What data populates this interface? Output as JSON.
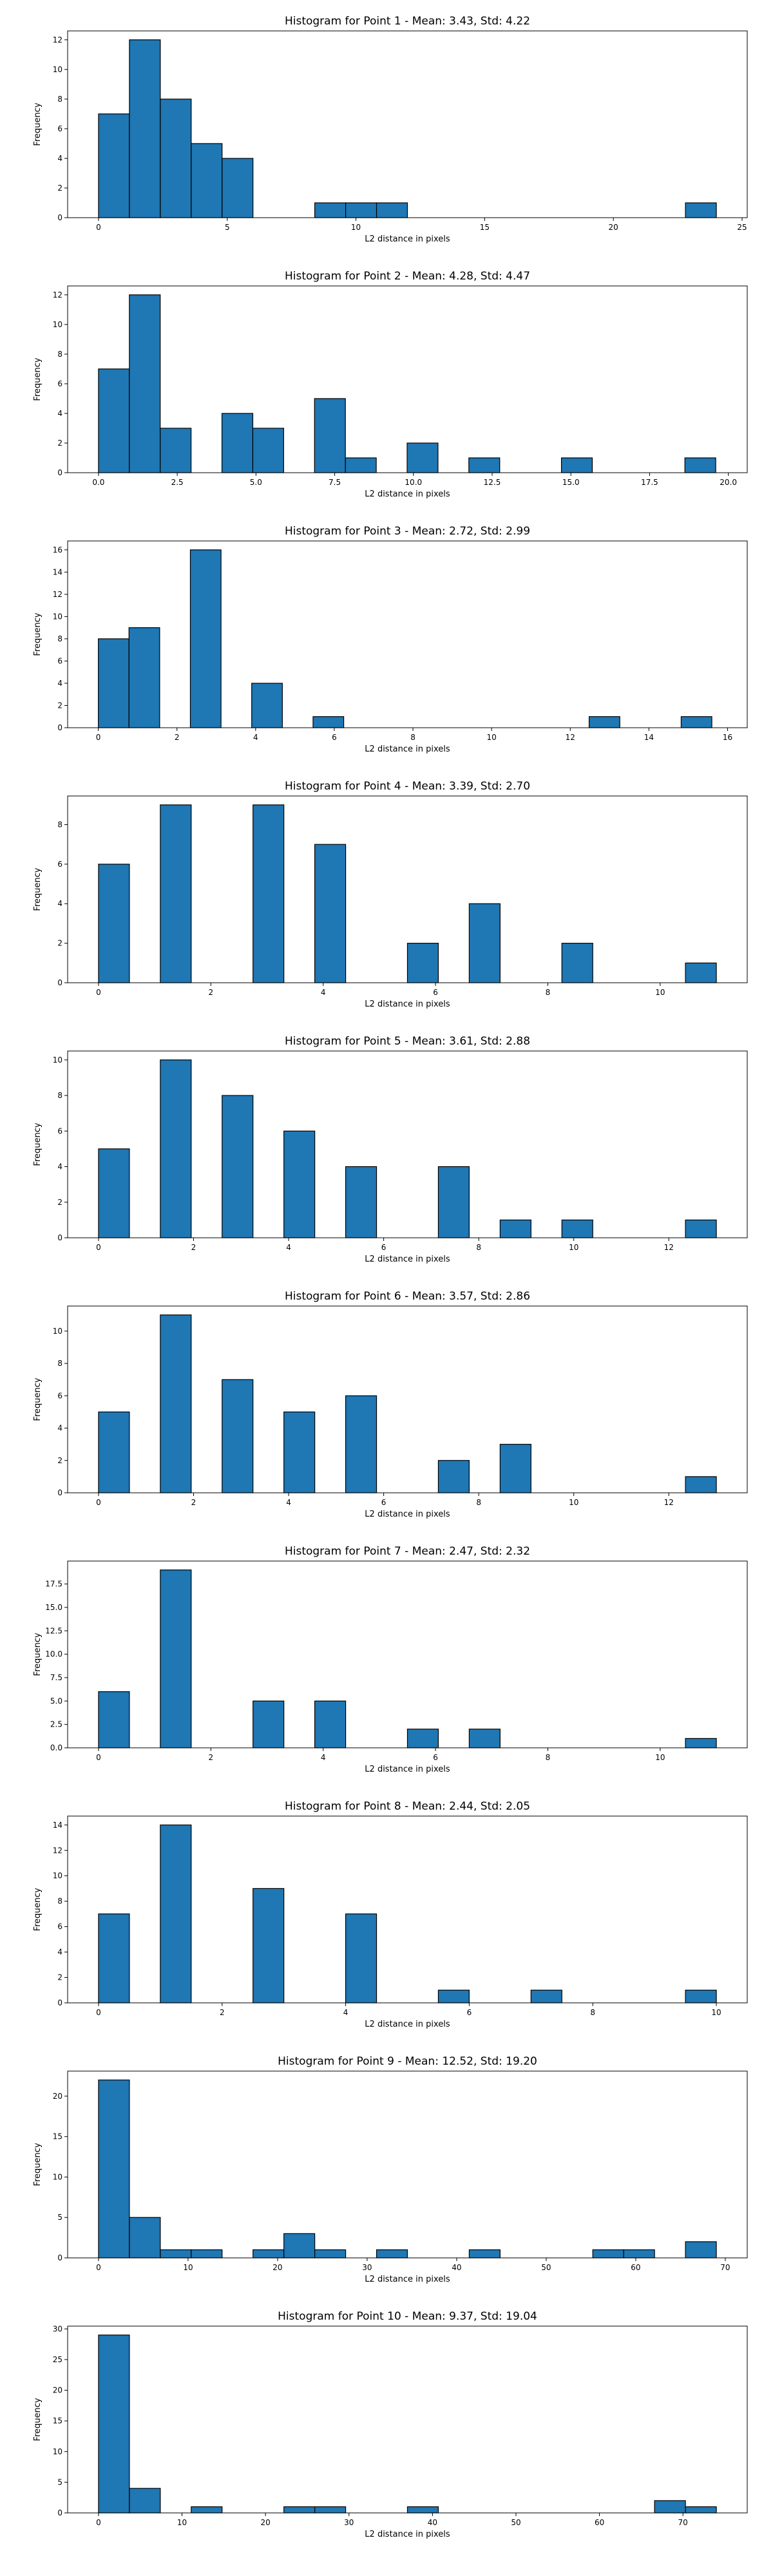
{
  "chart_data": [
    {
      "type": "bar",
      "title": "Histogram for Point 1 - Mean: 3.43, Std: 4.22",
      "xlabel": "L2 distance in pixels",
      "ylabel": "Frequency",
      "xlim": [
        -1.2,
        25.2
      ],
      "ylim": [
        0,
        12.6
      ],
      "xticks": [
        0,
        5,
        10,
        15,
        20,
        25
      ],
      "yticks": [
        0,
        2,
        4,
        6,
        8,
        10,
        12
      ],
      "grid": false,
      "bins": [
        {
          "x0": 0.0,
          "x1": 1.2,
          "count": 7
        },
        {
          "x0": 1.2,
          "x1": 2.4,
          "count": 12
        },
        {
          "x0": 2.4,
          "x1": 3.6,
          "count": 8
        },
        {
          "x0": 3.6,
          "x1": 4.8,
          "count": 5
        },
        {
          "x0": 4.8,
          "x1": 6.0,
          "count": 4
        },
        {
          "x0": 8.4,
          "x1": 9.6,
          "count": 1
        },
        {
          "x0": 9.6,
          "x1": 10.8,
          "count": 1
        },
        {
          "x0": 10.8,
          "x1": 12.0,
          "count": 1
        },
        {
          "x0": 22.8,
          "x1": 24.0,
          "count": 1
        }
      ]
    },
    {
      "type": "bar",
      "title": "Histogram for Point 2 - Mean: 4.28, Std: 4.47",
      "xlabel": "L2 distance in pixels",
      "ylabel": "Frequency",
      "xlim": [
        -0.98,
        20.6
      ],
      "ylim": [
        0,
        12.6
      ],
      "xticks": [
        "0.0",
        "2.5",
        "5.0",
        "7.5",
        "10.0",
        "12.5",
        "15.0",
        "17.5",
        "20.0"
      ],
      "yticks": [
        0,
        2,
        4,
        6,
        8,
        10,
        12
      ],
      "grid": false,
      "bins": [
        {
          "x0": 0.0,
          "x1": 0.98,
          "count": 7
        },
        {
          "x0": 0.98,
          "x1": 1.96,
          "count": 12
        },
        {
          "x0": 1.96,
          "x1": 2.94,
          "count": 3
        },
        {
          "x0": 3.92,
          "x1": 4.9,
          "count": 4
        },
        {
          "x0": 4.9,
          "x1": 5.88,
          "count": 3
        },
        {
          "x0": 6.86,
          "x1": 7.84,
          "count": 5
        },
        {
          "x0": 7.84,
          "x1": 8.82,
          "count": 1
        },
        {
          "x0": 9.8,
          "x1": 10.78,
          "count": 2
        },
        {
          "x0": 11.76,
          "x1": 12.74,
          "count": 1
        },
        {
          "x0": 14.7,
          "x1": 15.68,
          "count": 1
        },
        {
          "x0": 18.62,
          "x1": 19.6,
          "count": 1
        }
      ]
    },
    {
      "type": "bar",
      "title": "Histogram for Point 3 - Mean: 2.72, Std: 2.99",
      "xlabel": "L2 distance in pixels",
      "ylabel": "Frequency",
      "xlim": [
        -0.78,
        16.5
      ],
      "ylim": [
        0,
        16.8
      ],
      "xticks": [
        0,
        2,
        4,
        6,
        8,
        10,
        12,
        14,
        16
      ],
      "yticks": [
        0,
        2,
        4,
        6,
        8,
        10,
        12,
        14,
        16
      ],
      "grid": false,
      "bins": [
        {
          "x0": 0.0,
          "x1": 0.78,
          "count": 8
        },
        {
          "x0": 0.78,
          "x1": 1.56,
          "count": 9
        },
        {
          "x0": 2.34,
          "x1": 3.12,
          "count": 16
        },
        {
          "x0": 3.9,
          "x1": 4.68,
          "count": 4
        },
        {
          "x0": 5.46,
          "x1": 6.24,
          "count": 1
        },
        {
          "x0": 12.48,
          "x1": 13.26,
          "count": 1
        },
        {
          "x0": 14.82,
          "x1": 15.6,
          "count": 1
        }
      ]
    },
    {
      "type": "bar",
      "title": "Histogram for Point 4 - Mean: 3.39, Std: 2.70",
      "xlabel": "L2 distance in pixels",
      "ylabel": "Frequency",
      "xlim": [
        -0.55,
        11.55
      ],
      "ylim": [
        0,
        9.45
      ],
      "xticks": [
        0,
        2,
        4,
        6,
        8,
        10
      ],
      "yticks": [
        0,
        2,
        4,
        6,
        8
      ],
      "grid": false,
      "bins": [
        {
          "x0": 0.0,
          "x1": 0.55,
          "count": 6
        },
        {
          "x0": 1.1,
          "x1": 1.65,
          "count": 9
        },
        {
          "x0": 2.75,
          "x1": 3.3,
          "count": 9
        },
        {
          "x0": 3.85,
          "x1": 4.4,
          "count": 7
        },
        {
          "x0": 5.5,
          "x1": 6.05,
          "count": 2
        },
        {
          "x0": 6.6,
          "x1": 7.15,
          "count": 4
        },
        {
          "x0": 8.25,
          "x1": 8.8,
          "count": 2
        },
        {
          "x0": 10.45,
          "x1": 11.0,
          "count": 1
        }
      ]
    },
    {
      "type": "bar",
      "title": "Histogram for Point 5 - Mean: 3.61, Std: 2.88",
      "xlabel": "L2 distance in pixels",
      "ylabel": "Frequency",
      "xlim": [
        -0.65,
        13.65
      ],
      "ylim": [
        0,
        10.5
      ],
      "xticks": [
        0,
        2,
        4,
        6,
        8,
        10,
        12
      ],
      "yticks": [
        0,
        2,
        4,
        6,
        8,
        10
      ],
      "grid": false,
      "bins": [
        {
          "x0": 0.0,
          "x1": 0.65,
          "count": 5
        },
        {
          "x0": 1.3,
          "x1": 1.95,
          "count": 10
        },
        {
          "x0": 2.6,
          "x1": 3.25,
          "count": 8
        },
        {
          "x0": 3.9,
          "x1": 4.55,
          "count": 6
        },
        {
          "x0": 5.2,
          "x1": 5.85,
          "count": 4
        },
        {
          "x0": 7.15,
          "x1": 7.8,
          "count": 4
        },
        {
          "x0": 8.45,
          "x1": 9.1,
          "count": 1
        },
        {
          "x0": 9.75,
          "x1": 10.4,
          "count": 1
        },
        {
          "x0": 12.35,
          "x1": 13.0,
          "count": 1
        }
      ]
    },
    {
      "type": "bar",
      "title": "Histogram for Point 6 - Mean: 3.57, Std: 2.86",
      "xlabel": "L2 distance in pixels",
      "ylabel": "Frequency",
      "xlim": [
        -0.65,
        13.65
      ],
      "ylim": [
        0,
        11.55
      ],
      "xticks": [
        0,
        2,
        4,
        6,
        8,
        10,
        12
      ],
      "yticks": [
        0,
        2,
        4,
        6,
        8,
        10
      ],
      "grid": false,
      "bins": [
        {
          "x0": 0.0,
          "x1": 0.65,
          "count": 5
        },
        {
          "x0": 1.3,
          "x1": 1.95,
          "count": 11
        },
        {
          "x0": 2.6,
          "x1": 3.25,
          "count": 7
        },
        {
          "x0": 3.9,
          "x1": 4.55,
          "count": 5
        },
        {
          "x0": 5.2,
          "x1": 5.85,
          "count": 6
        },
        {
          "x0": 7.15,
          "x1": 7.8,
          "count": 2
        },
        {
          "x0": 8.45,
          "x1": 9.1,
          "count": 3
        },
        {
          "x0": 12.35,
          "x1": 13.0,
          "count": 1
        }
      ]
    },
    {
      "type": "bar",
      "title": "Histogram for Point 7 - Mean: 2.47, Std: 2.32",
      "xlabel": "L2 distance in pixels",
      "ylabel": "Frequency",
      "xlim": [
        -0.55,
        11.55
      ],
      "ylim": [
        0,
        19.95
      ],
      "xticks": [
        0,
        2,
        4,
        6,
        8,
        10
      ],
      "yticks": [
        "0.0",
        "2.5",
        "5.0",
        "7.5",
        "10.0",
        "12.5",
        "15.0",
        "17.5"
      ],
      "grid": false,
      "bins": [
        {
          "x0": 0.0,
          "x1": 0.55,
          "count": 6
        },
        {
          "x0": 1.1,
          "x1": 1.65,
          "count": 19
        },
        {
          "x0": 2.75,
          "x1": 3.3,
          "count": 5
        },
        {
          "x0": 3.85,
          "x1": 4.4,
          "count": 5
        },
        {
          "x0": 5.5,
          "x1": 6.05,
          "count": 2
        },
        {
          "x0": 6.6,
          "x1": 7.15,
          "count": 2
        },
        {
          "x0": 10.45,
          "x1": 11.0,
          "count": 1
        }
      ]
    },
    {
      "type": "bar",
      "title": "Histogram for Point 8 - Mean: 2.44, Std: 2.05",
      "xlabel": "L2 distance in pixels",
      "ylabel": "Frequency",
      "xlim": [
        -0.5,
        10.5
      ],
      "ylim": [
        0,
        14.7
      ],
      "xticks": [
        0,
        2,
        4,
        6,
        8,
        10
      ],
      "yticks": [
        0,
        2,
        4,
        6,
        8,
        10,
        12,
        14
      ],
      "grid": false,
      "bins": [
        {
          "x0": 0.0,
          "x1": 0.5,
          "count": 7
        },
        {
          "x0": 1.0,
          "x1": 1.5,
          "count": 14
        },
        {
          "x0": 2.5,
          "x1": 3.0,
          "count": 9
        },
        {
          "x0": 4.0,
          "x1": 4.5,
          "count": 7
        },
        {
          "x0": 5.5,
          "x1": 6.0,
          "count": 1
        },
        {
          "x0": 7.0,
          "x1": 7.5,
          "count": 1
        },
        {
          "x0": 9.5,
          "x1": 10.0,
          "count": 1
        }
      ]
    },
    {
      "type": "bar",
      "title": "Histogram for Point 9 - Mean: 12.52, Std: 19.20",
      "xlabel": "L2 distance in pixels",
      "ylabel": "Frequency",
      "xlim": [
        -3.45,
        72.45
      ],
      "ylim": [
        0,
        23.1
      ],
      "xticks": [
        0,
        10,
        20,
        30,
        40,
        50,
        60,
        70
      ],
      "yticks": [
        0,
        5,
        10,
        15,
        20
      ],
      "grid": false,
      "bins": [
        {
          "x0": 0.0,
          "x1": 3.45,
          "count": 22
        },
        {
          "x0": 3.45,
          "x1": 6.9,
          "count": 5
        },
        {
          "x0": 6.9,
          "x1": 10.35,
          "count": 1
        },
        {
          "x0": 10.35,
          "x1": 13.8,
          "count": 1
        },
        {
          "x0": 17.25,
          "x1": 20.7,
          "count": 1
        },
        {
          "x0": 20.7,
          "x1": 24.15,
          "count": 3
        },
        {
          "x0": 24.15,
          "x1": 27.6,
          "count": 1
        },
        {
          "x0": 31.05,
          "x1": 34.5,
          "count": 1
        },
        {
          "x0": 41.4,
          "x1": 44.85,
          "count": 1
        },
        {
          "x0": 55.2,
          "x1": 58.65,
          "count": 1
        },
        {
          "x0": 58.65,
          "x1": 62.1,
          "count": 1
        },
        {
          "x0": 65.55,
          "x1": 69.0,
          "count": 2
        }
      ]
    },
    {
      "type": "bar",
      "title": "Histogram for Point 10 - Mean: 9.37, Std: 19.04",
      "xlabel": "L2 distance in pixels",
      "ylabel": "Frequency",
      "xlim": [
        -3.7,
        77.7
      ],
      "ylim": [
        0,
        30.45
      ],
      "xticks": [
        0,
        10,
        20,
        30,
        40,
        50,
        60,
        70
      ],
      "yticks": [
        0,
        5,
        10,
        15,
        20,
        25,
        30
      ],
      "grid": false,
      "bins": [
        {
          "x0": 0.0,
          "x1": 3.7,
          "count": 29
        },
        {
          "x0": 3.7,
          "x1": 7.4,
          "count": 4
        },
        {
          "x0": 11.1,
          "x1": 14.8,
          "count": 1
        },
        {
          "x0": 22.2,
          "x1": 25.9,
          "count": 1
        },
        {
          "x0": 25.9,
          "x1": 29.6,
          "count": 1
        },
        {
          "x0": 37.0,
          "x1": 40.7,
          "count": 1
        },
        {
          "x0": 66.6,
          "x1": 70.3,
          "count": 2
        },
        {
          "x0": 70.3,
          "x1": 74.0,
          "count": 1
        }
      ]
    }
  ]
}
